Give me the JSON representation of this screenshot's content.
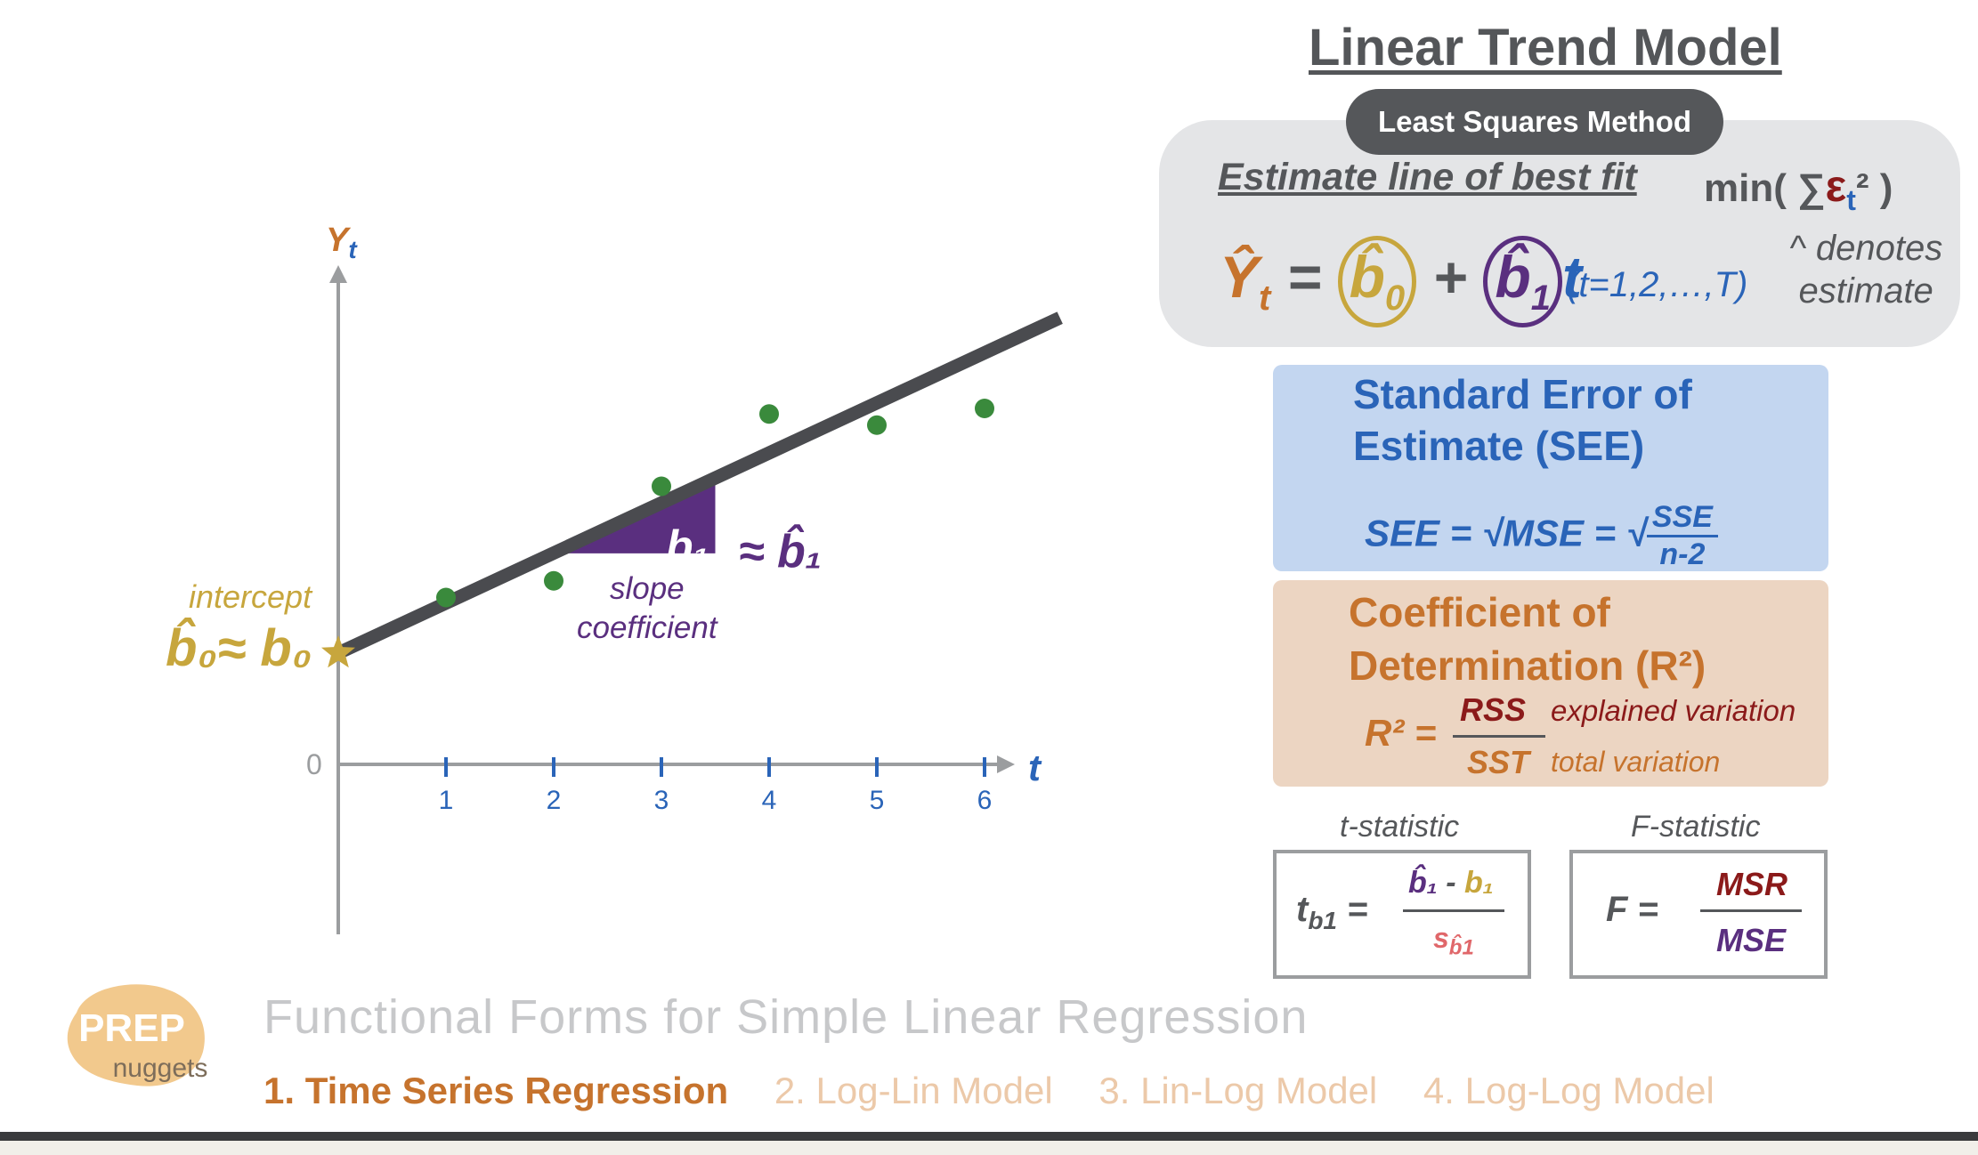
{
  "title": "Linear Trend Model",
  "least_squares": {
    "pill": "Least Squares Method",
    "estimate": "Estimate line of best fit",
    "min_open": "min( ∑",
    "min_eps": "ε",
    "min_sub": "t",
    "min_close": "² )",
    "eq_lhs": "Ŷ",
    "eq_lhs_sub": "t",
    "eq_equals": " = ",
    "b0": "b̂",
    "b0_sub": "0",
    "plus": " + ",
    "b1": "b̂",
    "b1_sub": "1",
    "t": "t",
    "t_range": "(t=1,2,…,T)",
    "denotes_line1": "^ denotes",
    "denotes_line2": "estimate"
  },
  "see": {
    "title_line1": "Standard Error of",
    "title_line2": "Estimate (SEE)",
    "formula_lhs": "SEE = √MSE  = √",
    "num": "SSE",
    "den": "n-2"
  },
  "r2": {
    "title_line1": "Coefficient of",
    "title_line2": "Determination (R²)",
    "lhs": "R² =",
    "num": "RSS",
    "den": "SST",
    "explained": "explained variation",
    "total": "total variation"
  },
  "t_stat": {
    "label": "t-statistic",
    "lhs": "t",
    "lhs_sub": "b1",
    "lhs_eq": " =",
    "num_b1hat": "b̂₁",
    "num_minus": " - ",
    "num_b1": "b₁",
    "den": "s",
    "den_sub": "b̂1"
  },
  "f_stat": {
    "label": "F-statistic",
    "lhs": "F =",
    "num": "MSR",
    "den": "MSE"
  },
  "chart": {
    "y_label": "Y",
    "y_label_sub": "t",
    "x_label": "t",
    "zero_label": "0",
    "intercept_label": "intercept",
    "b0_approx": "b̂₀≈ b₀",
    "b1_inside": "b₁",
    "b1_approx": "≈ b̂₁",
    "slope_line1": "slope",
    "slope_line2": "coefficient"
  },
  "chart_data": {
    "type": "scatter",
    "x_ticks": [
      "1",
      "2",
      "3",
      "4",
      "5",
      "6"
    ],
    "x": [
      1,
      2,
      3,
      4,
      5,
      6
    ],
    "y": [
      1.5,
      1.65,
      2.5,
      3.15,
      3.05,
      3.2
    ],
    "trend_line": {
      "intercept": 1.0,
      "slope": 0.45
    },
    "xlabel": "t",
    "ylabel": "Yt",
    "xlim": [
      0,
      6.3
    ],
    "ylim": [
      -1.6,
      4.7
    ],
    "colors": {
      "points": "#3a8a3c",
      "line": "#4a4b4f",
      "axes": "#9b9d9f",
      "ticks": "#2a64b8",
      "triangle": "#5a2f7f",
      "star": "#c7a63d"
    }
  },
  "logo": {
    "line1": "PREP",
    "line2": "nuggets"
  },
  "footer": {
    "title": "Functional Forms for Simple Linear Regression",
    "tabs": [
      {
        "label": "1. Time Series Regression"
      },
      {
        "label": "2. Log-Lin Model"
      },
      {
        "label": "3. Lin-Log Model"
      },
      {
        "label": "4. Log-Log Model"
      }
    ]
  }
}
